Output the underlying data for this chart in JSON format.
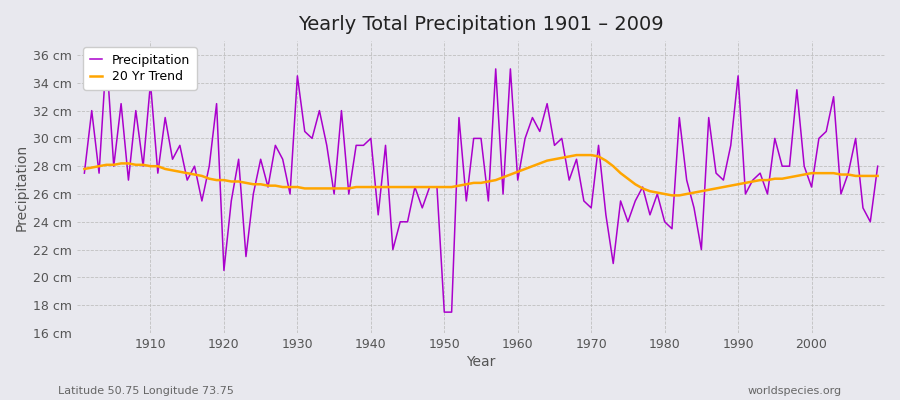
{
  "title": "Yearly Total Precipitation 1901 – 2009",
  "xlabel": "Year",
  "ylabel": "Precipitation",
  "subtitle_left": "Latitude 50.75 Longitude 73.75",
  "subtitle_right": "worldspecies.org",
  "years": [
    1901,
    1902,
    1903,
    1904,
    1905,
    1906,
    1907,
    1908,
    1909,
    1910,
    1911,
    1912,
    1913,
    1914,
    1915,
    1916,
    1917,
    1918,
    1919,
    1920,
    1921,
    1922,
    1923,
    1924,
    1925,
    1926,
    1927,
    1928,
    1929,
    1930,
    1931,
    1932,
    1933,
    1934,
    1935,
    1936,
    1937,
    1938,
    1939,
    1940,
    1941,
    1942,
    1943,
    1944,
    1945,
    1946,
    1947,
    1948,
    1949,
    1950,
    1951,
    1952,
    1953,
    1954,
    1955,
    1956,
    1957,
    1958,
    1959,
    1960,
    1961,
    1962,
    1963,
    1964,
    1965,
    1966,
    1967,
    1968,
    1969,
    1970,
    1971,
    1972,
    1973,
    1974,
    1975,
    1976,
    1977,
    1978,
    1979,
    1980,
    1981,
    1982,
    1983,
    1984,
    1985,
    1986,
    1987,
    1988,
    1989,
    1990,
    1991,
    1992,
    1993,
    1994,
    1995,
    1996,
    1997,
    1998,
    1999,
    2000,
    2001,
    2002,
    2003,
    2004,
    2005,
    2006,
    2007,
    2008,
    2009
  ],
  "precipitation": [
    27.5,
    32.0,
    27.5,
    36.0,
    28.0,
    32.5,
    27.0,
    32.0,
    28.0,
    34.0,
    27.5,
    31.5,
    28.5,
    29.5,
    27.0,
    28.0,
    25.5,
    28.0,
    32.5,
    20.5,
    25.5,
    28.5,
    21.5,
    26.0,
    28.5,
    26.5,
    29.5,
    28.5,
    26.0,
    34.5,
    30.5,
    30.0,
    32.0,
    29.5,
    26.0,
    32.0,
    26.0,
    29.5,
    29.5,
    30.0,
    24.5,
    29.5,
    22.0,
    24.0,
    24.0,
    26.5,
    25.0,
    26.5,
    26.5,
    17.5,
    17.5,
    31.5,
    25.5,
    30.0,
    30.0,
    25.5,
    35.0,
    26.0,
    35.0,
    27.0,
    30.0,
    31.5,
    30.5,
    32.5,
    29.5,
    30.0,
    27.0,
    28.5,
    25.5,
    25.0,
    29.5,
    24.5,
    21.0,
    25.5,
    24.0,
    25.5,
    26.5,
    24.5,
    26.0,
    24.0,
    23.5,
    31.5,
    27.0,
    25.0,
    22.0,
    31.5,
    27.5,
    27.0,
    29.5,
    34.5,
    26.0,
    27.0,
    27.5,
    26.0,
    30.0,
    28.0,
    28.0,
    33.5,
    28.0,
    26.5,
    30.0,
    30.5,
    33.0,
    26.0,
    27.5,
    30.0,
    25.0,
    24.0,
    28.0
  ],
  "trend": [
    27.8,
    27.9,
    28.0,
    28.1,
    28.1,
    28.2,
    28.2,
    28.1,
    28.1,
    28.0,
    28.0,
    27.8,
    27.7,
    27.6,
    27.5,
    27.4,
    27.3,
    27.1,
    27.0,
    27.0,
    26.9,
    26.9,
    26.8,
    26.7,
    26.7,
    26.6,
    26.6,
    26.5,
    26.5,
    26.5,
    26.4,
    26.4,
    26.4,
    26.4,
    26.4,
    26.4,
    26.4,
    26.5,
    26.5,
    26.5,
    26.5,
    26.5,
    26.5,
    26.5,
    26.5,
    26.5,
    26.5,
    26.5,
    26.5,
    26.5,
    26.5,
    26.6,
    26.7,
    26.8,
    26.8,
    26.9,
    27.0,
    27.2,
    27.4,
    27.6,
    27.8,
    28.0,
    28.2,
    28.4,
    28.5,
    28.6,
    28.7,
    28.8,
    28.8,
    28.8,
    28.7,
    28.4,
    28.0,
    27.5,
    27.1,
    26.7,
    26.4,
    26.2,
    26.1,
    26.0,
    25.9,
    25.9,
    26.0,
    26.1,
    26.2,
    26.3,
    26.4,
    26.5,
    26.6,
    26.7,
    26.8,
    26.9,
    27.0,
    27.0,
    27.1,
    27.1,
    27.2,
    27.3,
    27.4,
    27.5,
    27.5,
    27.5,
    27.5,
    27.4,
    27.4,
    27.3,
    27.3,
    27.3,
    27.3
  ],
  "precip_color": "#AA00CC",
  "trend_color": "#FFA500",
  "bg_color": "#E8E8EE",
  "plot_bg_color": "#E8E8EE",
  "ylim": [
    16,
    37
  ],
  "yticks": [
    16,
    18,
    20,
    22,
    24,
    26,
    28,
    30,
    32,
    34,
    36
  ],
  "ytick_labels": [
    "16 cm",
    "18 cm",
    "20 cm",
    "22 cm",
    "24 cm",
    "26 cm",
    "28 cm",
    "30 cm",
    "32 cm",
    "34 cm",
    "36 cm"
  ],
  "xticks": [
    1910,
    1920,
    1930,
    1940,
    1950,
    1960,
    1970,
    1980,
    1990,
    2000
  ],
  "xlim": [
    1900,
    2010
  ],
  "title_fontsize": 14,
  "axis_fontsize": 9,
  "legend_marker_color": "#AA00CC",
  "legend_trend_color": "#FFA500"
}
